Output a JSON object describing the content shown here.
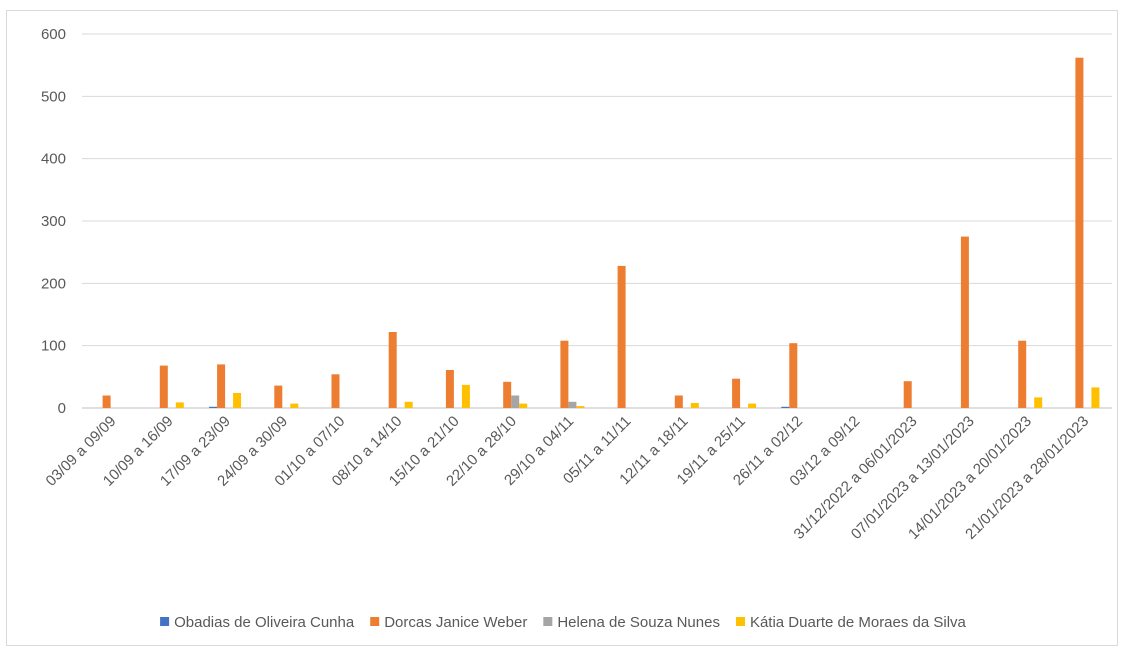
{
  "chart_data": {
    "type": "bar",
    "title": "",
    "xlabel": "",
    "ylabel": "",
    "ylim": [
      0,
      600
    ],
    "yticks": [
      0,
      100,
      200,
      300,
      400,
      500,
      600
    ],
    "grid": true,
    "legend_position": "bottom",
    "categories": [
      "03/09 a 09/09",
      "10/09 a 16/09",
      "17/09 a 23/09",
      "24/09 a 30/09",
      "01/10 a 07/10",
      "08/10 a 14/10",
      "15/10 a 21/10",
      "22/10 a 28/10",
      "29/10 a 04/11",
      "05/11 a 11/11",
      "12/11 a 18/11",
      "19/11 a 25/11",
      "26/11 a 02/12",
      "03/12 a 09/12",
      "31/12/2022 a 06/01/2023",
      "07/01/2023 a 13/01/2023",
      "14/01/2023 a 20/01/2023",
      "21/01/2023 a 28/01/2023"
    ],
    "series": [
      {
        "name": "Obadias de Oliveira Cunha",
        "color": "#4472c4",
        "values": [
          0,
          0,
          2,
          0,
          0,
          0,
          0,
          0,
          0,
          0,
          0,
          0,
          2,
          0,
          0,
          0,
          0,
          0
        ]
      },
      {
        "name": "Dorcas Janice Weber",
        "color": "#ed7d31",
        "values": [
          20,
          68,
          70,
          36,
          54,
          122,
          61,
          42,
          108,
          228,
          20,
          47,
          104,
          0,
          43,
          275,
          108,
          562
        ]
      },
      {
        "name": "Helena de Souza Nunes",
        "color": "#a5a5a5",
        "values": [
          0,
          0,
          0,
          0,
          0,
          0,
          0,
          20,
          10,
          0,
          0,
          0,
          0,
          0,
          0,
          0,
          0,
          0
        ]
      },
      {
        "name": "Kátia Duarte de Moraes da Silva",
        "color": "#ffc000",
        "values": [
          0,
          9,
          24,
          7,
          0,
          10,
          37,
          7,
          3,
          0,
          8,
          7,
          0,
          0,
          0,
          0,
          17,
          33
        ]
      }
    ]
  }
}
